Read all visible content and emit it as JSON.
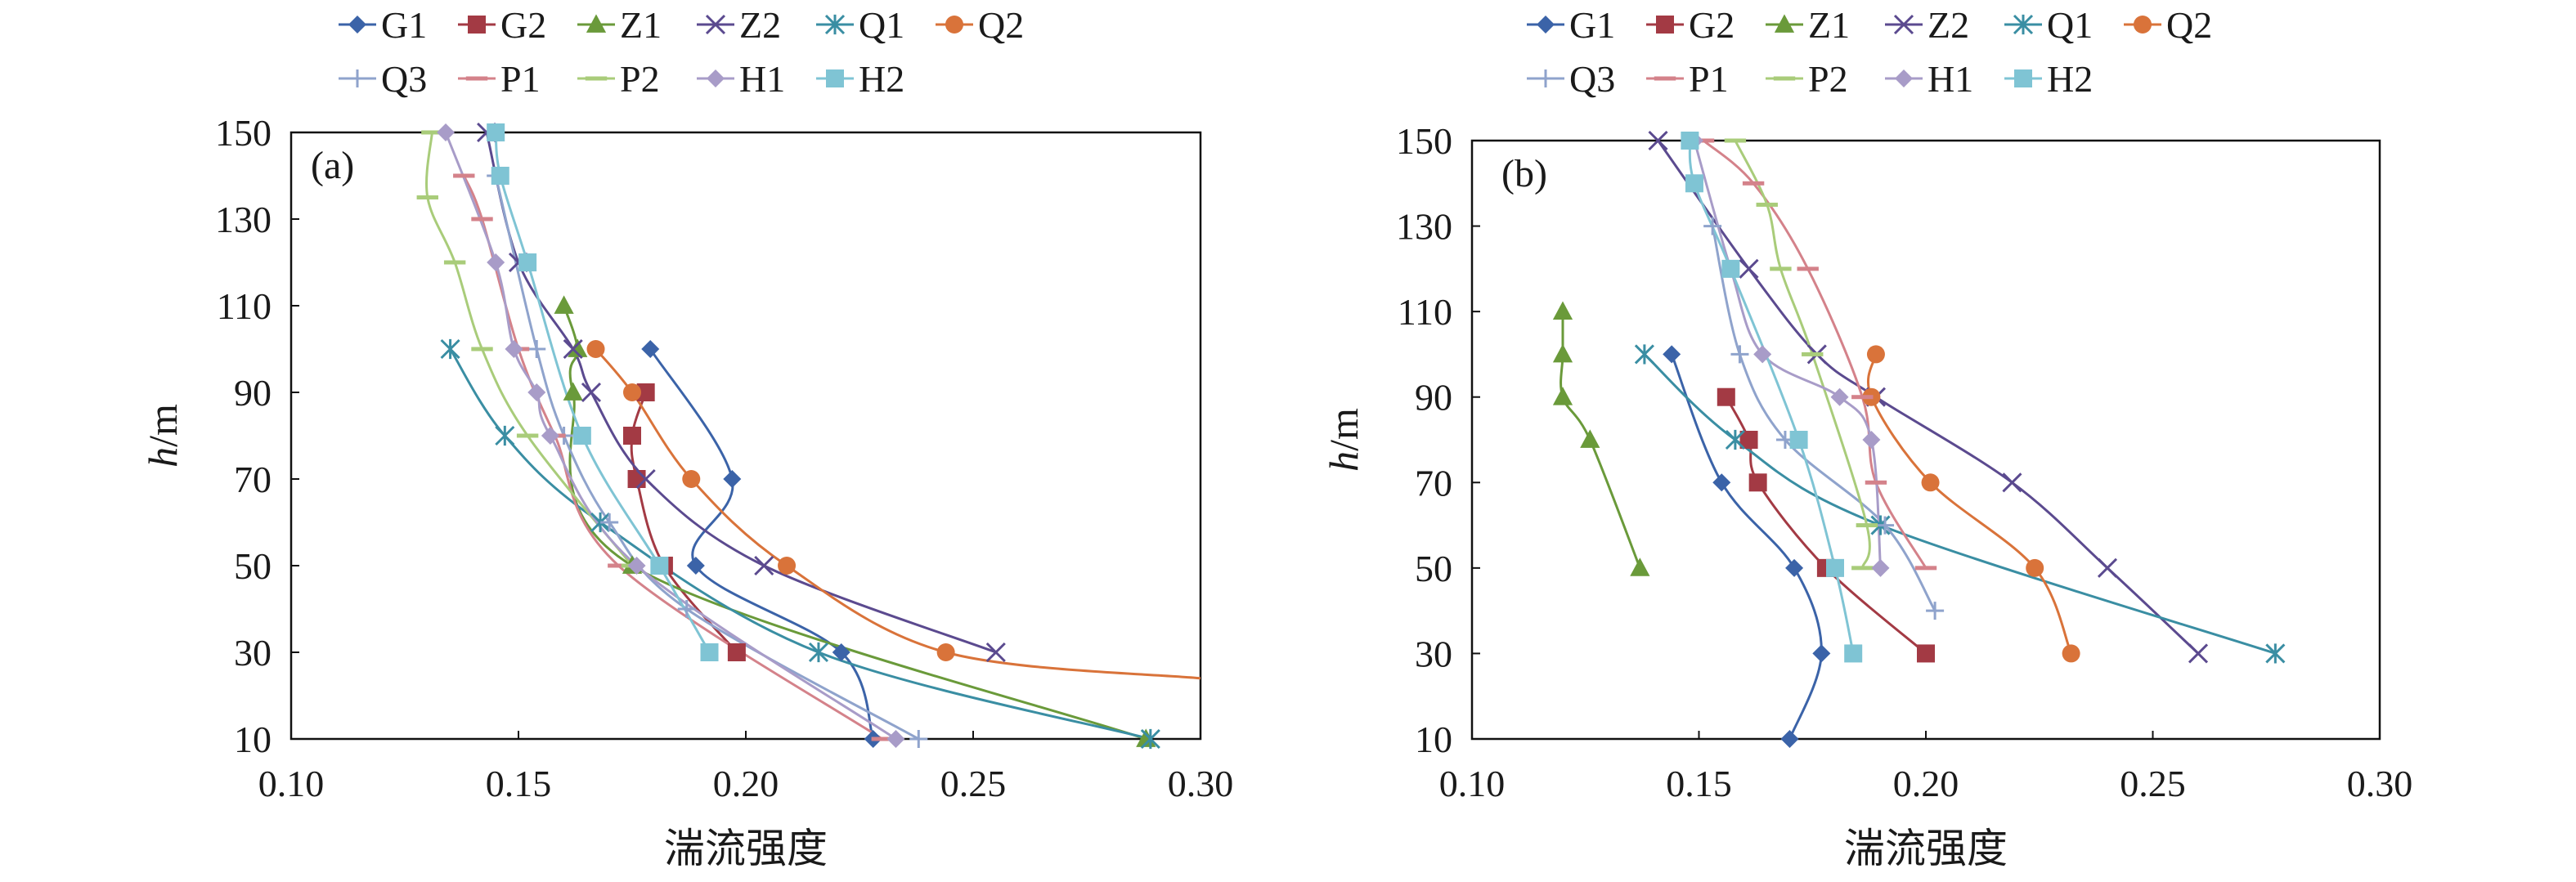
{
  "chart_data": [
    {
      "type": "line",
      "panel_label": "(a)",
      "xlabel": "湍流强度",
      "ylabel_italic": "h",
      "ylabel_unit": "/m",
      "xlim": [
        0.1,
        0.3
      ],
      "ylim": [
        10,
        150
      ],
      "xticks": [
        "0.10",
        "0.15",
        "0.20",
        "0.25",
        "0.30"
      ],
      "yticks": [
        "10",
        "30",
        "50",
        "70",
        "90",
        "110",
        "130",
        "150"
      ],
      "legend_position": "top",
      "series": [
        {
          "name": "G1",
          "color": "#3b63a8",
          "marker": "diamond",
          "points": [
            [
              0.228,
              10
            ],
            [
              0.221,
              30
            ],
            [
              0.189,
              50
            ],
            [
              0.197,
              70
            ],
            [
              0.179,
              100
            ]
          ]
        },
        {
          "name": "G2",
          "color": "#a33a44",
          "marker": "square",
          "points": [
            [
              0.198,
              30
            ],
            [
              0.182,
              50
            ],
            [
              0.176,
              70
            ],
            [
              0.175,
              80
            ],
            [
              0.178,
              90
            ]
          ]
        },
        {
          "name": "Z1",
          "color": "#6a9a3a",
          "marker": "triangle",
          "points": [
            [
              0.288,
              10
            ],
            [
              0.175,
              50
            ],
            [
              0.162,
              90
            ],
            [
              0.163,
              100
            ],
            [
              0.16,
              110
            ]
          ]
        },
        {
          "name": "Z2",
          "color": "#5b4a8f",
          "marker": "x",
          "points": [
            [
              0.255,
              30
            ],
            [
              0.204,
              50
            ],
            [
              0.178,
              70
            ],
            [
              0.166,
              90
            ],
            [
              0.162,
              100
            ],
            [
              0.15,
              120
            ],
            [
              0.143,
              150
            ]
          ]
        },
        {
          "name": "Q1",
          "color": "#3a8ea3",
          "marker": "asterisk",
          "points": [
            [
              0.289,
              10
            ],
            [
              0.216,
              30
            ],
            [
              0.168,
              60
            ],
            [
              0.147,
              80
            ],
            [
              0.135,
              100
            ]
          ]
        },
        {
          "name": "Q2",
          "color": "#d9733a",
          "marker": "circle",
          "points": [
            [
              0.3,
              24
            ],
            [
              0.244,
              30
            ],
            [
              0.209,
              50
            ],
            [
              0.188,
              70
            ],
            [
              0.175,
              90
            ],
            [
              0.167,
              100
            ]
          ]
        },
        {
          "name": "Q3",
          "color": "#8fa3cc",
          "marker": "plus",
          "points": [
            [
              0.238,
              10
            ],
            [
              0.187,
              40
            ],
            [
              0.17,
              60
            ],
            [
              0.16,
              80
            ],
            [
              0.154,
              100
            ],
            [
              0.145,
              140
            ]
          ]
        },
        {
          "name": "P1",
          "color": "#d4828a",
          "marker": "dash",
          "points": [
            [
              0.23,
              10
            ],
            [
              0.172,
              50
            ],
            [
              0.158,
              80
            ],
            [
              0.15,
              100
            ],
            [
              0.142,
              130
            ],
            [
              0.138,
              140
            ]
          ]
        },
        {
          "name": "P2",
          "color": "#a9cc7a",
          "marker": "dash",
          "points": [
            [
              0.175,
              50
            ],
            [
              0.152,
              80
            ],
            [
              0.142,
              100
            ],
            [
              0.136,
              120
            ],
            [
              0.13,
              135
            ],
            [
              0.131,
              150
            ]
          ]
        },
        {
          "name": "H1",
          "color": "#a89cc8",
          "marker": "diamond",
          "points": [
            [
              0.233,
              10
            ],
            [
              0.176,
              50
            ],
            [
              0.157,
              80
            ],
            [
              0.154,
              90
            ],
            [
              0.149,
              100
            ],
            [
              0.145,
              120
            ],
            [
              0.134,
              150
            ]
          ]
        },
        {
          "name": "H2",
          "color": "#7fc4d4",
          "marker": "square",
          "points": [
            [
              0.192,
              30
            ],
            [
              0.181,
              50
            ],
            [
              0.164,
              80
            ],
            [
              0.152,
              120
            ],
            [
              0.146,
              140
            ],
            [
              0.145,
              150
            ]
          ]
        }
      ]
    },
    {
      "type": "line",
      "panel_label": "(b)",
      "xlabel": "湍流强度",
      "ylabel_italic": "h",
      "ylabel_unit": "/m",
      "xlim": [
        0.1,
        0.3
      ],
      "ylim": [
        10,
        150
      ],
      "xticks": [
        "0.10",
        "0.15",
        "0.20",
        "0.25",
        "0.30"
      ],
      "yticks": [
        "10",
        "30",
        "50",
        "70",
        "90",
        "110",
        "130",
        "150"
      ],
      "legend_position": "top",
      "series": [
        {
          "name": "G1",
          "color": "#3b63a8",
          "marker": "diamond",
          "points": [
            [
              0.17,
              10
            ],
            [
              0.177,
              30
            ],
            [
              0.171,
              50
            ],
            [
              0.155,
              70
            ],
            [
              0.144,
              100
            ]
          ]
        },
        {
          "name": "G2",
          "color": "#a33a44",
          "marker": "square",
          "points": [
            [
              0.2,
              30
            ],
            [
              0.178,
              50
            ],
            [
              0.163,
              70
            ],
            [
              0.161,
              80
            ],
            [
              0.156,
              90
            ]
          ]
        },
        {
          "name": "Z1",
          "color": "#6a9a3a",
          "marker": "triangle",
          "points": [
            [
              0.137,
              50
            ],
            [
              0.126,
              80
            ],
            [
              0.12,
              90
            ],
            [
              0.12,
              100
            ],
            [
              0.12,
              110
            ]
          ]
        },
        {
          "name": "Z2",
          "color": "#5b4a8f",
          "marker": "x",
          "points": [
            [
              0.26,
              30
            ],
            [
              0.24,
              50
            ],
            [
              0.219,
              70
            ],
            [
              0.189,
              90
            ],
            [
              0.176,
              100
            ],
            [
              0.161,
              120
            ],
            [
              0.141,
              150
            ]
          ]
        },
        {
          "name": "Q1",
          "color": "#3a8ea3",
          "marker": "asterisk",
          "points": [
            [
              0.277,
              30
            ],
            [
              0.19,
              60
            ],
            [
              0.158,
              80
            ],
            [
              0.138,
              100
            ]
          ]
        },
        {
          "name": "Q2",
          "color": "#d9733a",
          "marker": "circle",
          "points": [
            [
              0.232,
              30
            ],
            [
              0.224,
              50
            ],
            [
              0.201,
              70
            ],
            [
              0.188,
              90
            ],
            [
              0.189,
              100
            ]
          ]
        },
        {
          "name": "Q3",
          "color": "#8fa3cc",
          "marker": "plus",
          "points": [
            [
              0.202,
              40
            ],
            [
              0.191,
              60
            ],
            [
              0.169,
              80
            ],
            [
              0.159,
              100
            ],
            [
              0.153,
              130
            ]
          ]
        },
        {
          "name": "P1",
          "color": "#d4828a",
          "marker": "dash",
          "points": [
            [
              0.2,
              50
            ],
            [
              0.189,
              70
            ],
            [
              0.186,
              90
            ],
            [
              0.174,
              120
            ],
            [
              0.162,
              140
            ],
            [
              0.151,
              150
            ]
          ]
        },
        {
          "name": "P2",
          "color": "#a9cc7a",
          "marker": "dash",
          "points": [
            [
              0.186,
              50
            ],
            [
              0.187,
              60
            ],
            [
              0.175,
              100
            ],
            [
              0.168,
              120
            ],
            [
              0.165,
              135
            ],
            [
              0.158,
              150
            ]
          ]
        },
        {
          "name": "H1",
          "color": "#a89cc8",
          "marker": "diamond",
          "points": [
            [
              0.19,
              50
            ],
            [
              0.188,
              80
            ],
            [
              0.181,
              90
            ],
            [
              0.164,
              100
            ],
            [
              0.157,
              120
            ],
            [
              0.149,
              150
            ]
          ]
        },
        {
          "name": "H2",
          "color": "#7fc4d4",
          "marker": "square",
          "points": [
            [
              0.184,
              30
            ],
            [
              0.18,
              50
            ],
            [
              0.172,
              80
            ],
            [
              0.157,
              120
            ],
            [
              0.149,
              140
            ],
            [
              0.148,
              150
            ]
          ]
        }
      ]
    }
  ]
}
